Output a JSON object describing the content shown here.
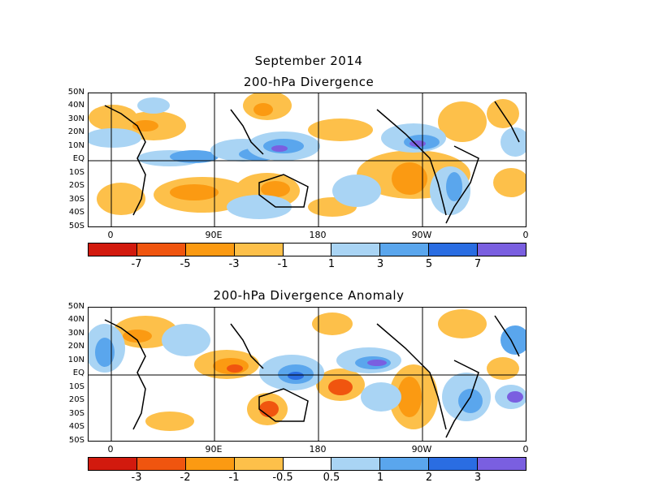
{
  "figure": {
    "title": "September 2014"
  },
  "panels": [
    {
      "title": "200-hPa Divergence",
      "legend_labels": [
        "-7",
        "-5",
        "-3",
        "-1",
        "1",
        "3",
        "5",
        "7"
      ]
    },
    {
      "title": "200-hPa Divergence Anomaly",
      "legend_labels": [
        "-3",
        "-2",
        "-1",
        "-0.5",
        "0.5",
        "1",
        "2",
        "3"
      ]
    }
  ],
  "lat_labels": [
    "50N",
    "40N",
    "30N",
    "20N",
    "10N",
    "EQ",
    "10S",
    "20S",
    "30S",
    "40S",
    "50S"
  ],
  "lon_labels": [
    "0",
    "90E",
    "180",
    "90W",
    "0"
  ],
  "colors": {
    "palette": [
      "#d21a0e",
      "#f0550f",
      "#fb9a12",
      "#fdc04a",
      "#ffffff",
      "#a9d4f4",
      "#5aa6ed",
      "#2a6de2",
      "#7a5fe0"
    ]
  }
}
